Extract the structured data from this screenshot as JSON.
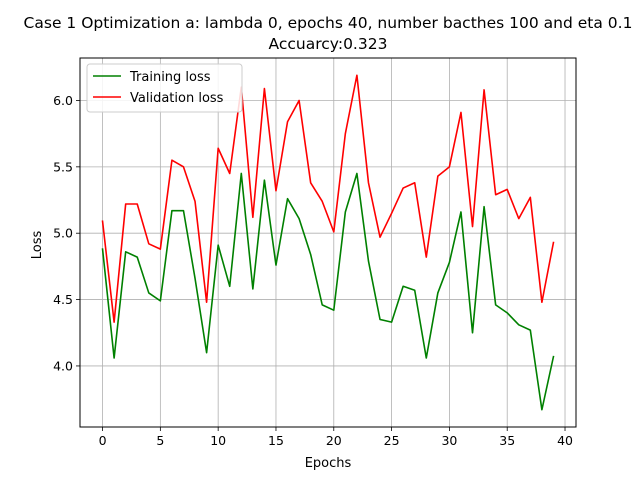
{
  "chart_data": {
    "type": "line",
    "title": "Case 1 Optimization a: lambda 0, epochs 40, number bacthes 100 and eta 0.1",
    "subtitle": "Accuarcy:0.323",
    "xlabel": "Epochs",
    "ylabel": "Loss",
    "xlim": [
      -1.95,
      40.95
    ],
    "ylim": [
      3.54,
      6.32
    ],
    "xticks": [
      0,
      5,
      10,
      15,
      20,
      25,
      30,
      35,
      40
    ],
    "yticks": [
      4.0,
      4.5,
      5.0,
      5.5,
      6.0
    ],
    "xtick_labels": [
      "0",
      "5",
      "10",
      "15",
      "20",
      "25",
      "30",
      "35",
      "40"
    ],
    "ytick_labels": [
      "4.0",
      "4.5",
      "5.0",
      "5.5",
      "6.0"
    ],
    "grid": true,
    "legend_position": "top-left",
    "x": [
      0,
      1,
      2,
      3,
      4,
      5,
      6,
      7,
      8,
      9,
      10,
      11,
      12,
      13,
      14,
      15,
      16,
      17,
      18,
      19,
      20,
      21,
      22,
      23,
      24,
      25,
      26,
      27,
      28,
      29,
      30,
      31,
      32,
      33,
      34,
      35,
      36,
      37,
      38,
      39
    ],
    "series": [
      {
        "name": "Training loss",
        "color": "#008000",
        "values": [
          4.88,
          4.06,
          4.86,
          4.82,
          4.55,
          4.49,
          5.17,
          5.17,
          4.66,
          4.1,
          4.91,
          4.6,
          5.45,
          4.58,
          5.4,
          4.76,
          5.26,
          5.11,
          4.84,
          4.46,
          4.42,
          5.16,
          5.45,
          4.79,
          4.35,
          4.33,
          4.6,
          4.57,
          4.06,
          4.55,
          4.78,
          5.16,
          4.25,
          5.2,
          4.46,
          4.4,
          4.31,
          4.27,
          3.67,
          4.07
        ]
      },
      {
        "name": "Validation loss",
        "color": "#ff0000",
        "values": [
          5.09,
          4.33,
          5.22,
          5.22,
          4.92,
          4.88,
          5.55,
          5.5,
          5.24,
          4.48,
          5.64,
          5.45,
          6.1,
          5.12,
          6.09,
          5.32,
          5.84,
          6.0,
          5.38,
          5.24,
          5.01,
          5.75,
          6.19,
          5.38,
          4.97,
          5.15,
          5.34,
          5.38,
          4.82,
          5.43,
          5.5,
          5.91,
          5.05,
          6.08,
          5.29,
          5.33,
          5.11,
          5.27,
          4.48,
          4.93
        ]
      }
    ]
  }
}
